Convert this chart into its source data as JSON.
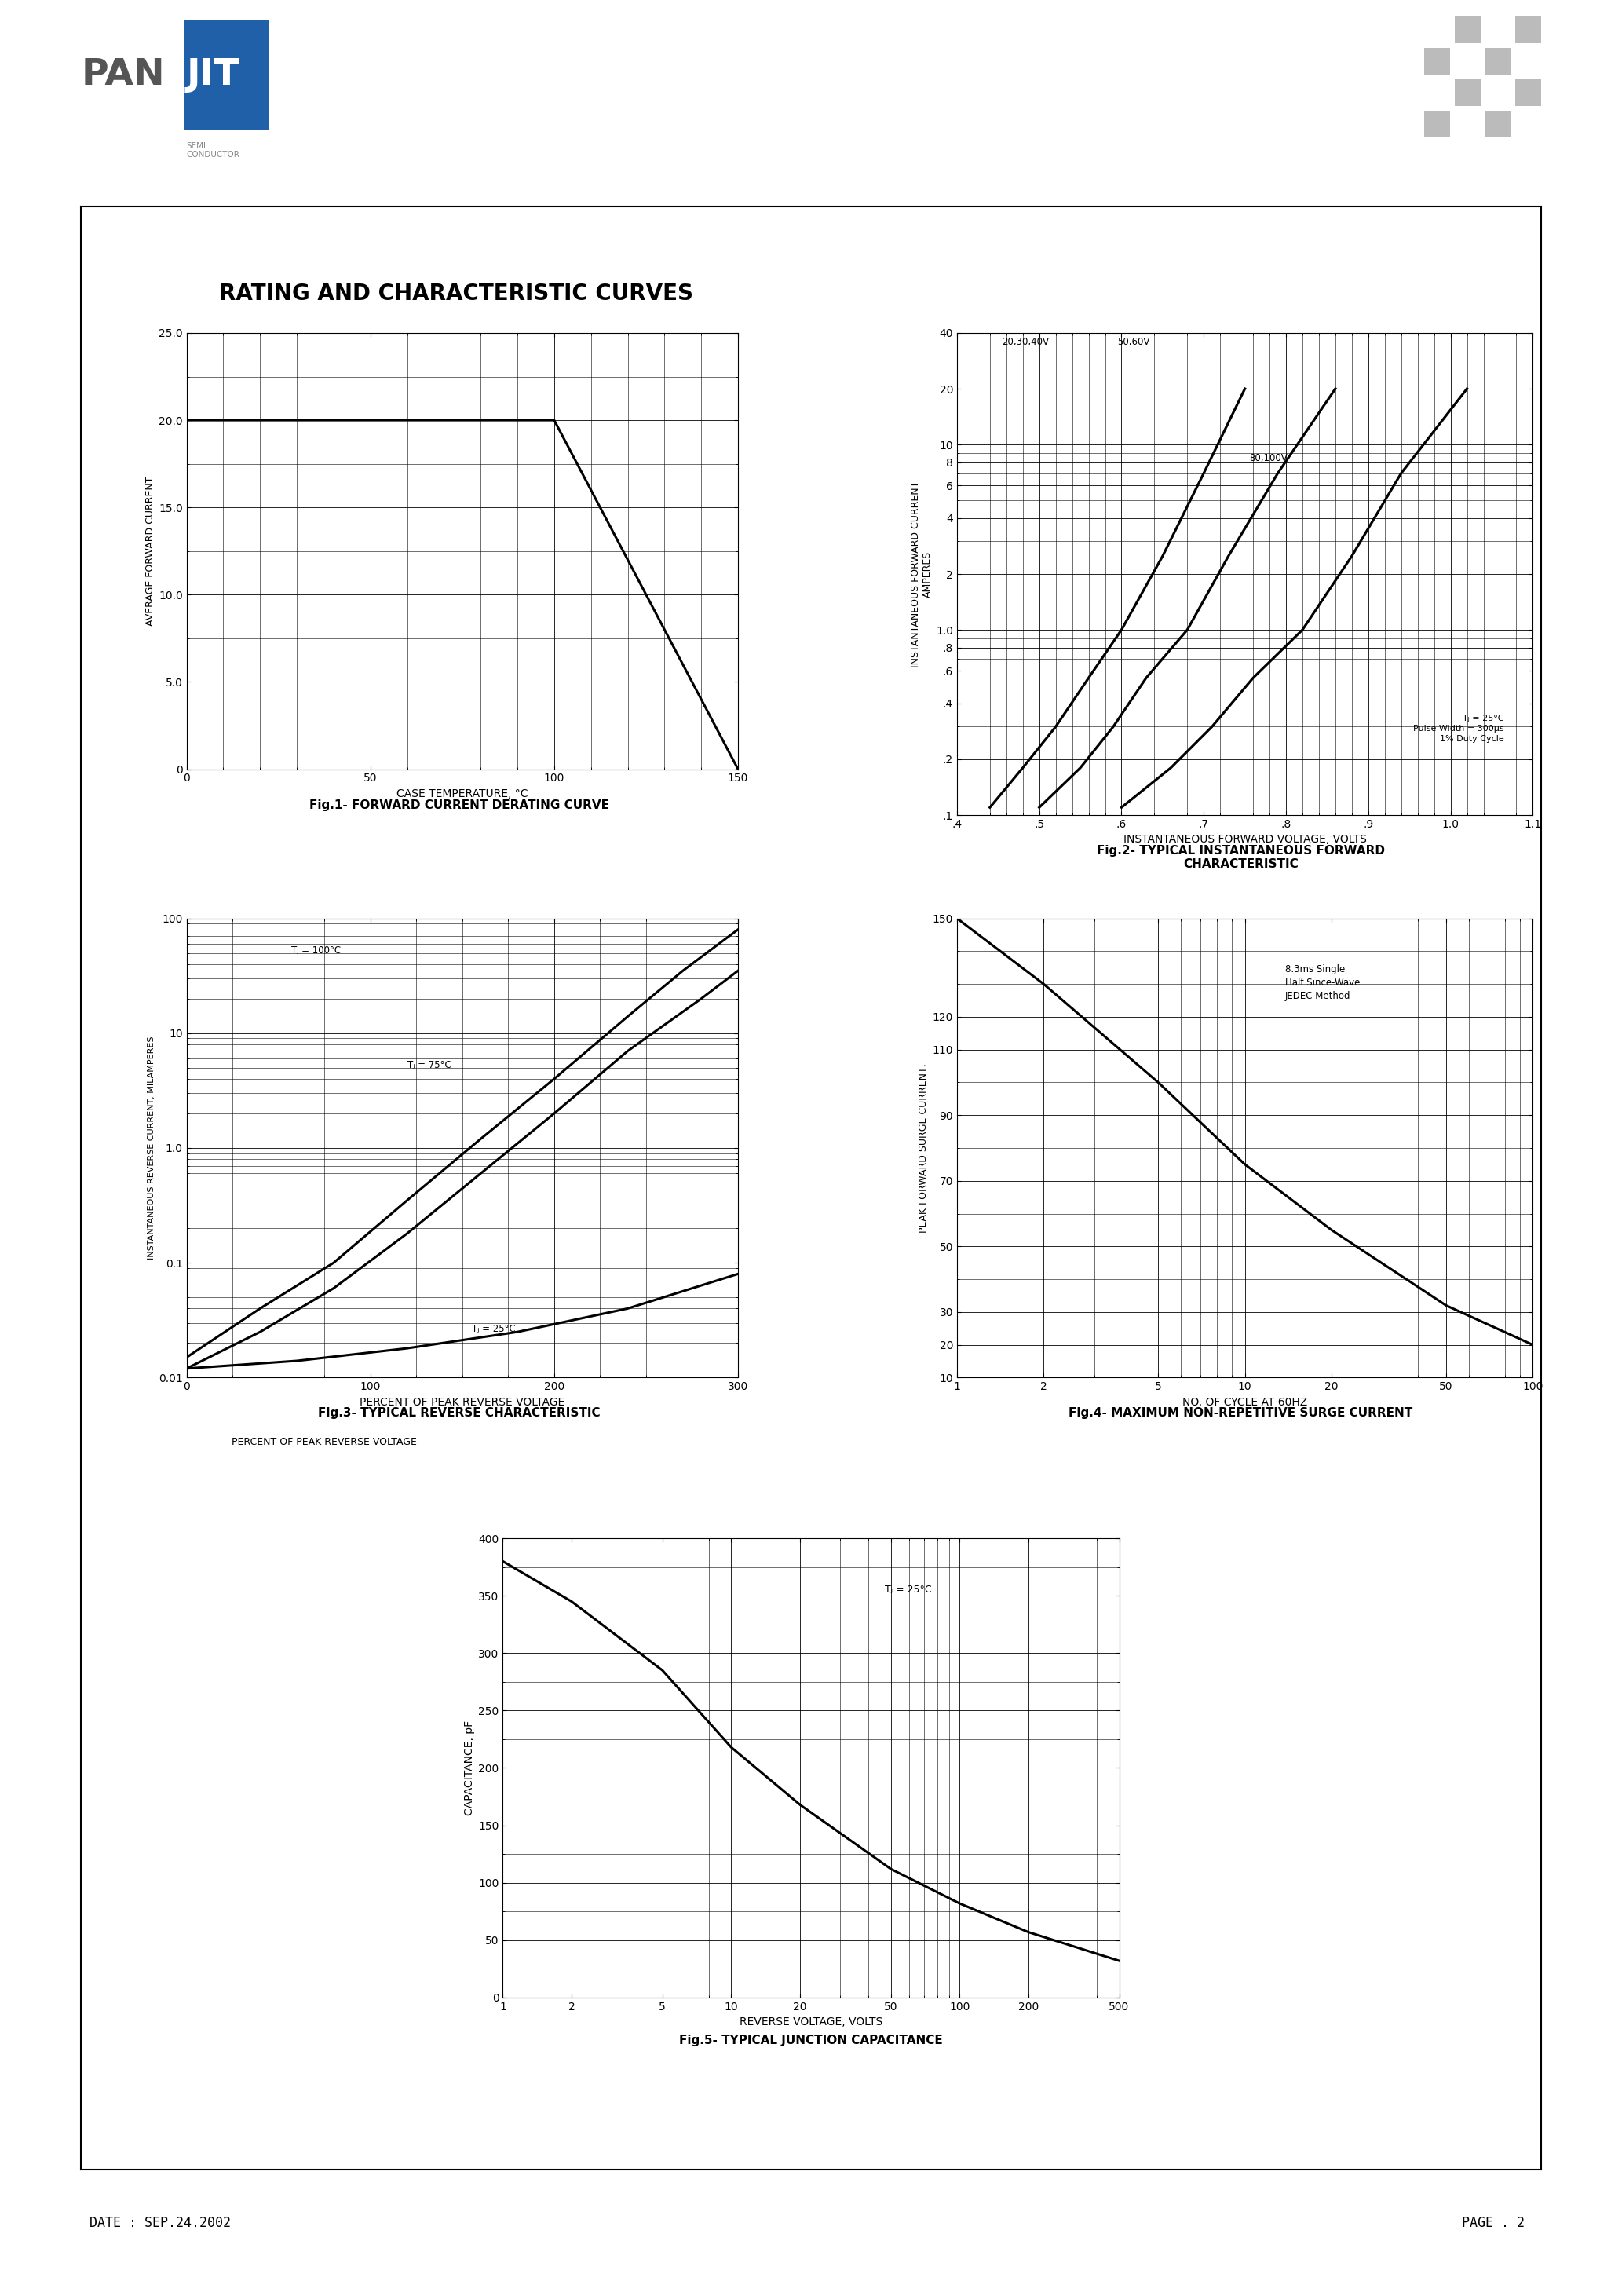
{
  "page_title": "RATING AND CHARACTERISTIC CURVES",
  "fig1_title": "Fig.1- FORWARD CURRENT DERATING CURVE",
  "fig2_title": "Fig.2- TYPICAL INSTANTANEOUS FORWARD\nCHARACTERISTIC",
  "fig3_title": "Fig.3- TYPICAL REVERSE CHARACTERISTIC",
  "fig4_title": "Fig.4- MAXIMUM NON-REPETITIVE SURGE CURRENT",
  "fig5_title": "Fig.5- TYPICAL JUNCTION CAPACITANCE",
  "date_text": "DATE : SEP.24.2002",
  "page_text": "PAGE . 2",
  "fig1": {
    "xlabel": "CASE TEMPERATURE, °C",
    "ylabel": "AVERAGE FORWARD CURRENT",
    "xlim": [
      0,
      150
    ],
    "ylim": [
      0,
      25
    ],
    "yticks": [
      0,
      5.0,
      10.0,
      15.0,
      20.0,
      25.0
    ],
    "ytick_labels": [
      "0",
      "5.0",
      "10.0",
      "15.0",
      "20.0",
      "25.0"
    ],
    "xticks": [
      0,
      50,
      100,
      150
    ],
    "line_x": [
      0,
      100,
      150
    ],
    "line_y": [
      20.0,
      20.0,
      0.0
    ]
  },
  "fig2": {
    "xlabel": "INSTANTANEOUS FORWARD VOLTAGE, VOLTS",
    "ylabel": "INSTANTANEOUS FORWARD CURRENT\nAMPERES",
    "xlim": [
      0.4,
      1.1
    ],
    "ylim_min": 0.1,
    "ylim_max": 40,
    "xtick_vals": [
      0.4,
      0.5,
      0.6,
      0.7,
      0.8,
      0.9,
      1.0,
      1.1
    ],
    "xtick_labels": [
      ".4",
      ".5",
      ".6",
      ".7",
      ".8",
      ".9",
      "1.0",
      "1.1"
    ],
    "ytick_vals": [
      0.1,
      0.2,
      0.4,
      0.6,
      0.8,
      1.0,
      2.0,
      4.0,
      6.0,
      8.0,
      10.0,
      20.0,
      40.0
    ],
    "ytick_labels": [
      ".1",
      ".2",
      ".4",
      ".6",
      ".8",
      "1.0",
      "2",
      "4",
      "6",
      "8",
      "10",
      "20",
      "40"
    ],
    "curve_2030_40V_x": [
      0.44,
      0.48,
      0.52,
      0.56,
      0.6,
      0.65,
      0.7,
      0.75
    ],
    "curve_2030_40V_y": [
      0.11,
      0.18,
      0.3,
      0.55,
      1.0,
      2.5,
      7.0,
      20.0
    ],
    "curve_5060V_x": [
      0.5,
      0.55,
      0.59,
      0.63,
      0.68,
      0.73,
      0.79,
      0.86
    ],
    "curve_5060V_y": [
      0.11,
      0.18,
      0.3,
      0.55,
      1.0,
      2.5,
      7.0,
      20.0
    ],
    "curve_80100V_x": [
      0.6,
      0.66,
      0.71,
      0.76,
      0.82,
      0.88,
      0.94,
      1.02
    ],
    "curve_80100V_y": [
      0.11,
      0.18,
      0.3,
      0.55,
      1.0,
      2.5,
      7.0,
      20.0
    ],
    "label_2030_40V": "20,30,40V",
    "label_5060V": "50,60V",
    "label_80100V": "80,100V",
    "annotation": "Tⱼ = 25°C\nPulse Width = 300μs\n1% Duty Cycle"
  },
  "fig3": {
    "xlabel": "PERCENT OF PEAK REVERSE VOLTAGE",
    "ylabel": "INSTANTANEOUS REVERSE CURRENT, MILAMPERES",
    "xlim": [
      0,
      300
    ],
    "xticks": [
      0,
      100,
      200,
      300
    ],
    "ylim_min": 0.01,
    "ylim_max": 100,
    "ytick_vals": [
      0.01,
      0.1,
      1.0,
      10.0,
      100.0
    ],
    "ytick_labels": [
      "0.01",
      "0.1",
      "1.0",
      "10",
      "100"
    ],
    "curve_Tc100_x": [
      0,
      40,
      80,
      120,
      160,
      200,
      240,
      270,
      300
    ],
    "curve_Tc100_y": [
      0.015,
      0.04,
      0.1,
      0.35,
      1.2,
      4.0,
      14.0,
      35.0,
      80.0
    ],
    "curve_Tc75_x": [
      0,
      40,
      80,
      120,
      160,
      200,
      240,
      280,
      300
    ],
    "curve_Tc75_y": [
      0.012,
      0.025,
      0.06,
      0.18,
      0.6,
      2.0,
      7.0,
      20.0,
      35.0
    ],
    "curve_Tc25_x": [
      0,
      60,
      120,
      180,
      240,
      300
    ],
    "curve_Tc25_y": [
      0.012,
      0.014,
      0.018,
      0.025,
      0.04,
      0.08
    ],
    "label_Tc100": "Tⱼ = 100°C",
    "label_Tc75": "Tⱼ = 75°C",
    "label_Tc25": "Tⱼ = 25°C"
  },
  "fig4": {
    "xlabel": "NO. OF CYCLE AT 60HZ",
    "ylabel": "PEAK FORWARD SURGE CURRENT,",
    "xlim_min": 1,
    "xlim_max": 100,
    "ylim": [
      10,
      150
    ],
    "yticks": [
      10,
      20,
      30,
      50,
      70,
      90,
      110,
      120,
      150
    ],
    "xtick_vals": [
      1,
      2,
      5,
      10,
      20,
      50,
      100
    ],
    "xtick_labels": [
      "1",
      "2",
      "5",
      "10",
      "20",
      "50",
      "100"
    ],
    "annotation": "8.3ms Single\nHalf Since-Wave\nJEDEC Method",
    "line_x": [
      1,
      2,
      5,
      10,
      20,
      50,
      100
    ],
    "line_y": [
      150,
      130,
      100,
      75,
      55,
      32,
      20
    ]
  },
  "fig5": {
    "xlabel": "REVERSE VOLTAGE, VOLTS",
    "ylabel": "CAPACITANCE, pF",
    "xlim_min": 1,
    "xlim_max": 500,
    "ylim": [
      0,
      400
    ],
    "yticks": [
      0,
      50,
      100,
      150,
      200,
      250,
      300,
      350,
      400
    ],
    "xtick_vals": [
      1,
      2,
      5,
      10,
      20,
      50,
      100,
      200,
      500
    ],
    "xtick_labels": [
      "1",
      "2",
      "5",
      "10",
      "20",
      "50",
      "100",
      "200",
      "500"
    ],
    "annotation": "Tⱼ = 25°C",
    "line_x": [
      1,
      2,
      5,
      10,
      20,
      50,
      100,
      200,
      500
    ],
    "line_y": [
      380,
      345,
      285,
      218,
      168,
      112,
      82,
      57,
      32
    ]
  }
}
